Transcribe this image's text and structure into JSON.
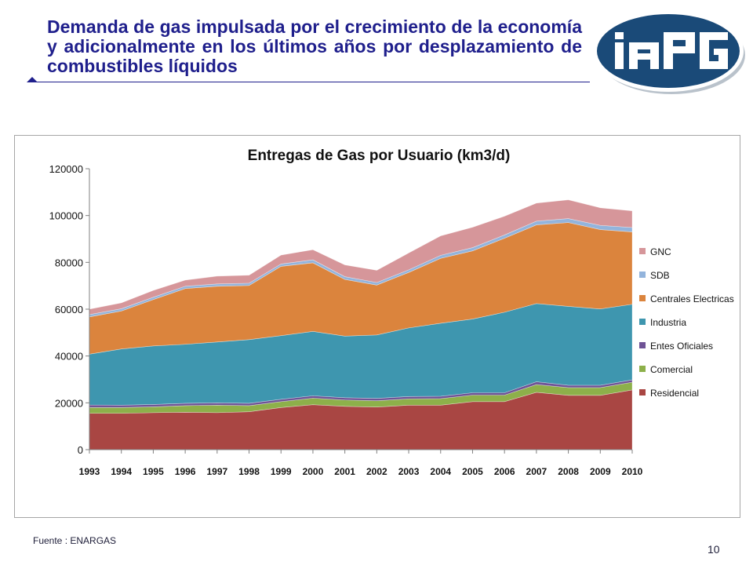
{
  "slide": {
    "title": "Demanda de gas  impulsada por el crecimiento de la economía y adicionalmente en los últimos años por desplazamiento de combustibles líquidos",
    "logo_text": "IAPG",
    "source": "Fuente :  ENARGAS",
    "page_number": "10",
    "colors": {
      "title": "#1f1f8c",
      "logo_bg": "#1a4a78",
      "logo_ring": "#ffffff"
    }
  },
  "chart_data": {
    "type": "area",
    "stacked": true,
    "title": "Entregas de Gas por Usuario (km3/d)",
    "xlabel": "",
    "ylabel": "",
    "ylim": [
      0,
      120000
    ],
    "yticks": [
      "0",
      "20000",
      "40000",
      "60000",
      "80000",
      "100000",
      "120000"
    ],
    "legend_position": "right",
    "grid": false,
    "categories": [
      "1993",
      "1994",
      "1995",
      "1996",
      "1997",
      "1998",
      "1999",
      "2000",
      "2001",
      "2002",
      "2003",
      "2004",
      "2005",
      "2006",
      "2007",
      "2008",
      "2009",
      "2010"
    ],
    "series": [
      {
        "name": "Residencial",
        "color": "#a94643",
        "values": [
          15500,
          15500,
          15800,
          16000,
          15800,
          16200,
          18000,
          19200,
          18500,
          18200,
          19000,
          19000,
          20500,
          20500,
          24500,
          23200,
          23200,
          25500
        ]
      },
      {
        "name": "Comercial",
        "color": "#8db04a",
        "values": [
          2500,
          2500,
          2500,
          2800,
          3200,
          2600,
          2500,
          2800,
          2700,
          2700,
          2700,
          2800,
          2800,
          2800,
          3300,
          3300,
          3300,
          3300
        ]
      },
      {
        "name": "Entes Oficiales",
        "color": "#6f5396",
        "values": [
          1100,
          1000,
          1000,
          1000,
          1000,
          1000,
          1000,
          1000,
          1000,
          1000,
          1000,
          1000,
          1000,
          1000,
          1200,
          1000,
          1000,
          1000
        ]
      },
      {
        "name": "Industria",
        "color": "#3e96af",
        "values": [
          21700,
          24000,
          25000,
          25200,
          26000,
          27200,
          27200,
          27500,
          26300,
          27100,
          29300,
          31200,
          31500,
          34400,
          33400,
          33700,
          32600,
          32300
        ]
      },
      {
        "name": "Centrales Electricas",
        "color": "#db843d",
        "values": [
          15900,
          16200,
          19800,
          23800,
          23800,
          23100,
          29600,
          29300,
          24200,
          21300,
          23700,
          27700,
          29100,
          31600,
          33600,
          35800,
          33900,
          30900
        ]
      },
      {
        "name": "SDB",
        "color": "#93b4dc",
        "values": [
          1000,
          1000,
          1000,
          1000,
          1000,
          1000,
          1000,
          1300,
          1200,
          1100,
          1100,
          1300,
          1400,
          1400,
          1600,
          1700,
          1800,
          1900
        ]
      },
      {
        "name": "GNC",
        "color": "#d6969a",
        "values": [
          2300,
          2500,
          2900,
          2600,
          3300,
          3400,
          3800,
          4300,
          5000,
          5200,
          7200,
          8300,
          8700,
          8000,
          7700,
          8000,
          7500,
          7100
        ]
      }
    ]
  }
}
